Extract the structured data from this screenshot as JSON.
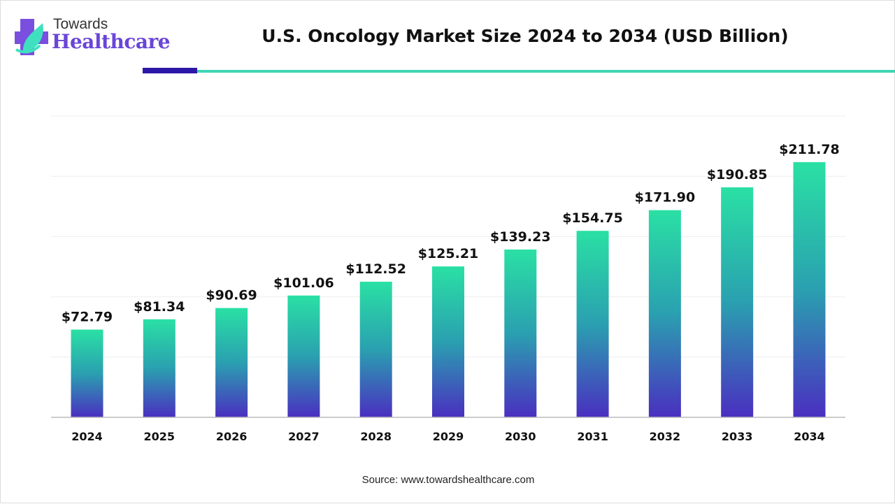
{
  "brand": {
    "line1": "Towards",
    "line2": "Healthcare",
    "colors": {
      "purple": "#6a45d8",
      "teal": "#3fd6b4"
    }
  },
  "header": {
    "title": "U.S. Oncology Market Size 2024 to 2034 (USD Billion)"
  },
  "source": "Source: www.towardshealthcare.com",
  "chart_data": {
    "type": "bar",
    "title": "U.S. Oncology Market Size 2024 to 2034 (USD Billion)",
    "categories": [
      "2024",
      "2025",
      "2026",
      "2027",
      "2028",
      "2029",
      "2030",
      "2031",
      "2032",
      "2033",
      "2034"
    ],
    "values": [
      72.79,
      81.34,
      90.69,
      101.06,
      112.52,
      125.21,
      139.23,
      154.75,
      171.9,
      190.85,
      211.78
    ],
    "labels": [
      "$72.79",
      "$81.34",
      "$90.69",
      "$101.06",
      "$112.52",
      "$125.21",
      "$139.23",
      "$154.75",
      "$171.90",
      "$190.85",
      "$211.78"
    ],
    "ylim": [
      0,
      250
    ],
    "grid": true,
    "gridStep": 50,
    "barGradient": {
      "top": "#2ae0a4",
      "middle": "#2aa0b0",
      "bottom": "#4a2fc0"
    }
  }
}
